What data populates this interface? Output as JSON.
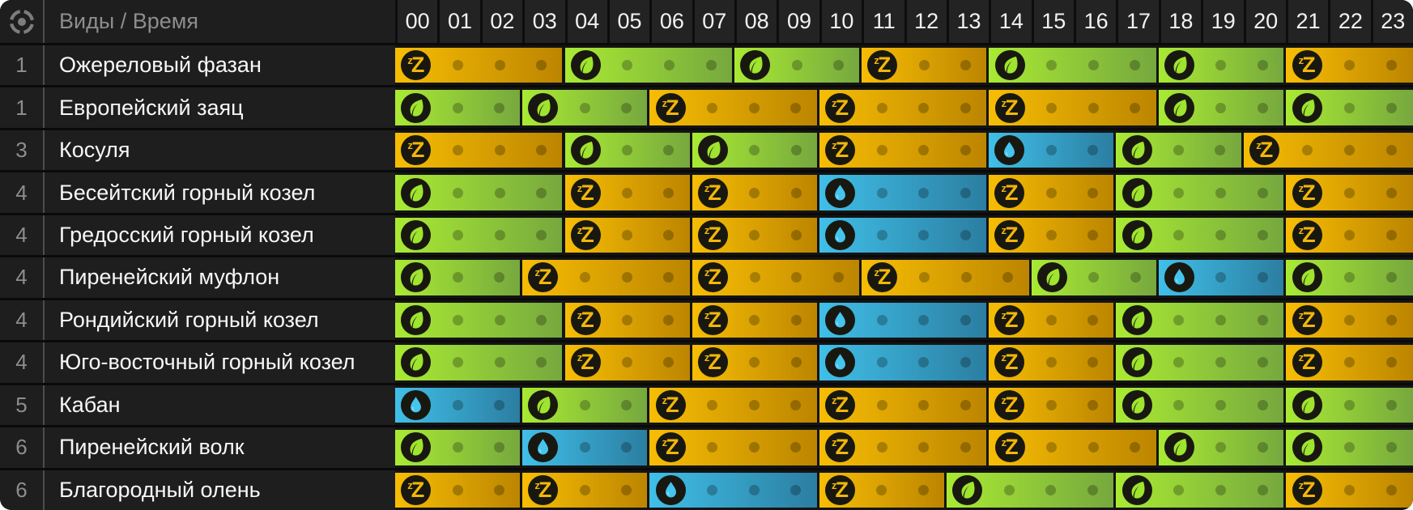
{
  "header": {
    "corner_icon": "target-icon",
    "species_time_label": "Виды / Время",
    "hours": [
      "00",
      "01",
      "02",
      "03",
      "04",
      "05",
      "06",
      "07",
      "08",
      "09",
      "10",
      "11",
      "12",
      "13",
      "14",
      "15",
      "16",
      "17",
      "18",
      "19",
      "20",
      "21",
      "22",
      "23"
    ]
  },
  "activity_types": {
    "sleep": {
      "icon": "sleep-z-icon",
      "color_start": "#f7bd04",
      "color_end": "#bc8500",
      "glyph_color": "#f3b70a"
    },
    "feed": {
      "icon": "feed-leaf-icon",
      "color_start": "#a9ea33",
      "color_end": "#76a83e",
      "glyph_color": "#9fe42e"
    },
    "drink": {
      "icon": "drink-drop-icon",
      "color_start": "#40bfe8",
      "color_end": "#2b7ea1",
      "glyph_color": "#45c4ee"
    }
  },
  "ui_colors": {
    "panel_bg": "#1e1e1e",
    "header_cell_bg": "#232323",
    "row_gap": "#0a0a0a",
    "column_divider": "#4d4d4d",
    "muted_text": "#8d8d8d",
    "hour_text": "#f2f2f2",
    "name_text": "#f7f7f7"
  },
  "rows": [
    {
      "level": "1",
      "name": "Ожереловый фазан",
      "segments": [
        {
          "start": 0,
          "len": 4,
          "type": "sleep"
        },
        {
          "start": 4,
          "len": 4,
          "type": "feed"
        },
        {
          "start": 8,
          "len": 3,
          "type": "feed"
        },
        {
          "start": 11,
          "len": 3,
          "type": "sleep"
        },
        {
          "start": 14,
          "len": 4,
          "type": "feed"
        },
        {
          "start": 18,
          "len": 3,
          "type": "feed"
        },
        {
          "start": 21,
          "len": 3,
          "type": "sleep"
        }
      ]
    },
    {
      "level": "1",
      "name": "Европейский заяц",
      "segments": [
        {
          "start": 0,
          "len": 3,
          "type": "feed"
        },
        {
          "start": 3,
          "len": 3,
          "type": "feed"
        },
        {
          "start": 6,
          "len": 4,
          "type": "sleep"
        },
        {
          "start": 10,
          "len": 4,
          "type": "sleep"
        },
        {
          "start": 14,
          "len": 4,
          "type": "sleep"
        },
        {
          "start": 18,
          "len": 3,
          "type": "feed"
        },
        {
          "start": 21,
          "len": 3,
          "type": "feed"
        }
      ]
    },
    {
      "level": "3",
      "name": "Косуля",
      "segments": [
        {
          "start": 0,
          "len": 4,
          "type": "sleep"
        },
        {
          "start": 4,
          "len": 3,
          "type": "feed"
        },
        {
          "start": 7,
          "len": 3,
          "type": "feed"
        },
        {
          "start": 10,
          "len": 4,
          "type": "sleep"
        },
        {
          "start": 14,
          "len": 3,
          "type": "drink"
        },
        {
          "start": 17,
          "len": 3,
          "type": "feed"
        },
        {
          "start": 20,
          "len": 4,
          "type": "sleep"
        }
      ]
    },
    {
      "level": "4",
      "name": "Бесейтский горный козел",
      "segments": [
        {
          "start": 0,
          "len": 4,
          "type": "feed"
        },
        {
          "start": 4,
          "len": 3,
          "type": "sleep"
        },
        {
          "start": 7,
          "len": 3,
          "type": "sleep"
        },
        {
          "start": 10,
          "len": 4,
          "type": "drink"
        },
        {
          "start": 14,
          "len": 3,
          "type": "sleep"
        },
        {
          "start": 17,
          "len": 4,
          "type": "feed"
        },
        {
          "start": 21,
          "len": 3,
          "type": "sleep"
        }
      ]
    },
    {
      "level": "4",
      "name": "Гредосский горный козел",
      "segments": [
        {
          "start": 0,
          "len": 4,
          "type": "feed"
        },
        {
          "start": 4,
          "len": 3,
          "type": "sleep"
        },
        {
          "start": 7,
          "len": 3,
          "type": "sleep"
        },
        {
          "start": 10,
          "len": 4,
          "type": "drink"
        },
        {
          "start": 14,
          "len": 3,
          "type": "sleep"
        },
        {
          "start": 17,
          "len": 4,
          "type": "feed"
        },
        {
          "start": 21,
          "len": 3,
          "type": "sleep"
        }
      ]
    },
    {
      "level": "4",
      "name": "Пиренейский муфлон",
      "segments": [
        {
          "start": 0,
          "len": 3,
          "type": "feed"
        },
        {
          "start": 3,
          "len": 4,
          "type": "sleep"
        },
        {
          "start": 7,
          "len": 4,
          "type": "sleep"
        },
        {
          "start": 11,
          "len": 4,
          "type": "sleep"
        },
        {
          "start": 15,
          "len": 3,
          "type": "feed"
        },
        {
          "start": 18,
          "len": 3,
          "type": "drink"
        },
        {
          "start": 21,
          "len": 3,
          "type": "feed"
        }
      ]
    },
    {
      "level": "4",
      "name": "Рондийский горный козел",
      "segments": [
        {
          "start": 0,
          "len": 4,
          "type": "feed"
        },
        {
          "start": 4,
          "len": 3,
          "type": "sleep"
        },
        {
          "start": 7,
          "len": 3,
          "type": "sleep"
        },
        {
          "start": 10,
          "len": 4,
          "type": "drink"
        },
        {
          "start": 14,
          "len": 3,
          "type": "sleep"
        },
        {
          "start": 17,
          "len": 4,
          "type": "feed"
        },
        {
          "start": 21,
          "len": 3,
          "type": "sleep"
        }
      ]
    },
    {
      "level": "4",
      "name": "Юго-восточный горный козел",
      "segments": [
        {
          "start": 0,
          "len": 4,
          "type": "feed"
        },
        {
          "start": 4,
          "len": 3,
          "type": "sleep"
        },
        {
          "start": 7,
          "len": 3,
          "type": "sleep"
        },
        {
          "start": 10,
          "len": 4,
          "type": "drink"
        },
        {
          "start": 14,
          "len": 3,
          "type": "sleep"
        },
        {
          "start": 17,
          "len": 4,
          "type": "feed"
        },
        {
          "start": 21,
          "len": 3,
          "type": "sleep"
        }
      ]
    },
    {
      "level": "5",
      "name": "Кабан",
      "segments": [
        {
          "start": 0,
          "len": 3,
          "type": "drink"
        },
        {
          "start": 3,
          "len": 3,
          "type": "feed"
        },
        {
          "start": 6,
          "len": 4,
          "type": "sleep"
        },
        {
          "start": 10,
          "len": 4,
          "type": "sleep"
        },
        {
          "start": 14,
          "len": 3,
          "type": "sleep"
        },
        {
          "start": 17,
          "len": 4,
          "type": "feed"
        },
        {
          "start": 21,
          "len": 3,
          "type": "feed"
        }
      ]
    },
    {
      "level": "6",
      "name": "Пиренейский волк",
      "segments": [
        {
          "start": 0,
          "len": 3,
          "type": "feed"
        },
        {
          "start": 3,
          "len": 3,
          "type": "drink"
        },
        {
          "start": 6,
          "len": 4,
          "type": "sleep"
        },
        {
          "start": 10,
          "len": 4,
          "type": "sleep"
        },
        {
          "start": 14,
          "len": 4,
          "type": "sleep"
        },
        {
          "start": 18,
          "len": 3,
          "type": "feed"
        },
        {
          "start": 21,
          "len": 3,
          "type": "feed"
        }
      ]
    },
    {
      "level": "6",
      "name": "Благородный олень",
      "segments": [
        {
          "start": 0,
          "len": 3,
          "type": "sleep"
        },
        {
          "start": 3,
          "len": 3,
          "type": "sleep"
        },
        {
          "start": 6,
          "len": 4,
          "type": "drink"
        },
        {
          "start": 10,
          "len": 3,
          "type": "sleep"
        },
        {
          "start": 13,
          "len": 4,
          "type": "feed"
        },
        {
          "start": 17,
          "len": 4,
          "type": "feed"
        },
        {
          "start": 21,
          "len": 3,
          "type": "sleep"
        }
      ]
    }
  ]
}
